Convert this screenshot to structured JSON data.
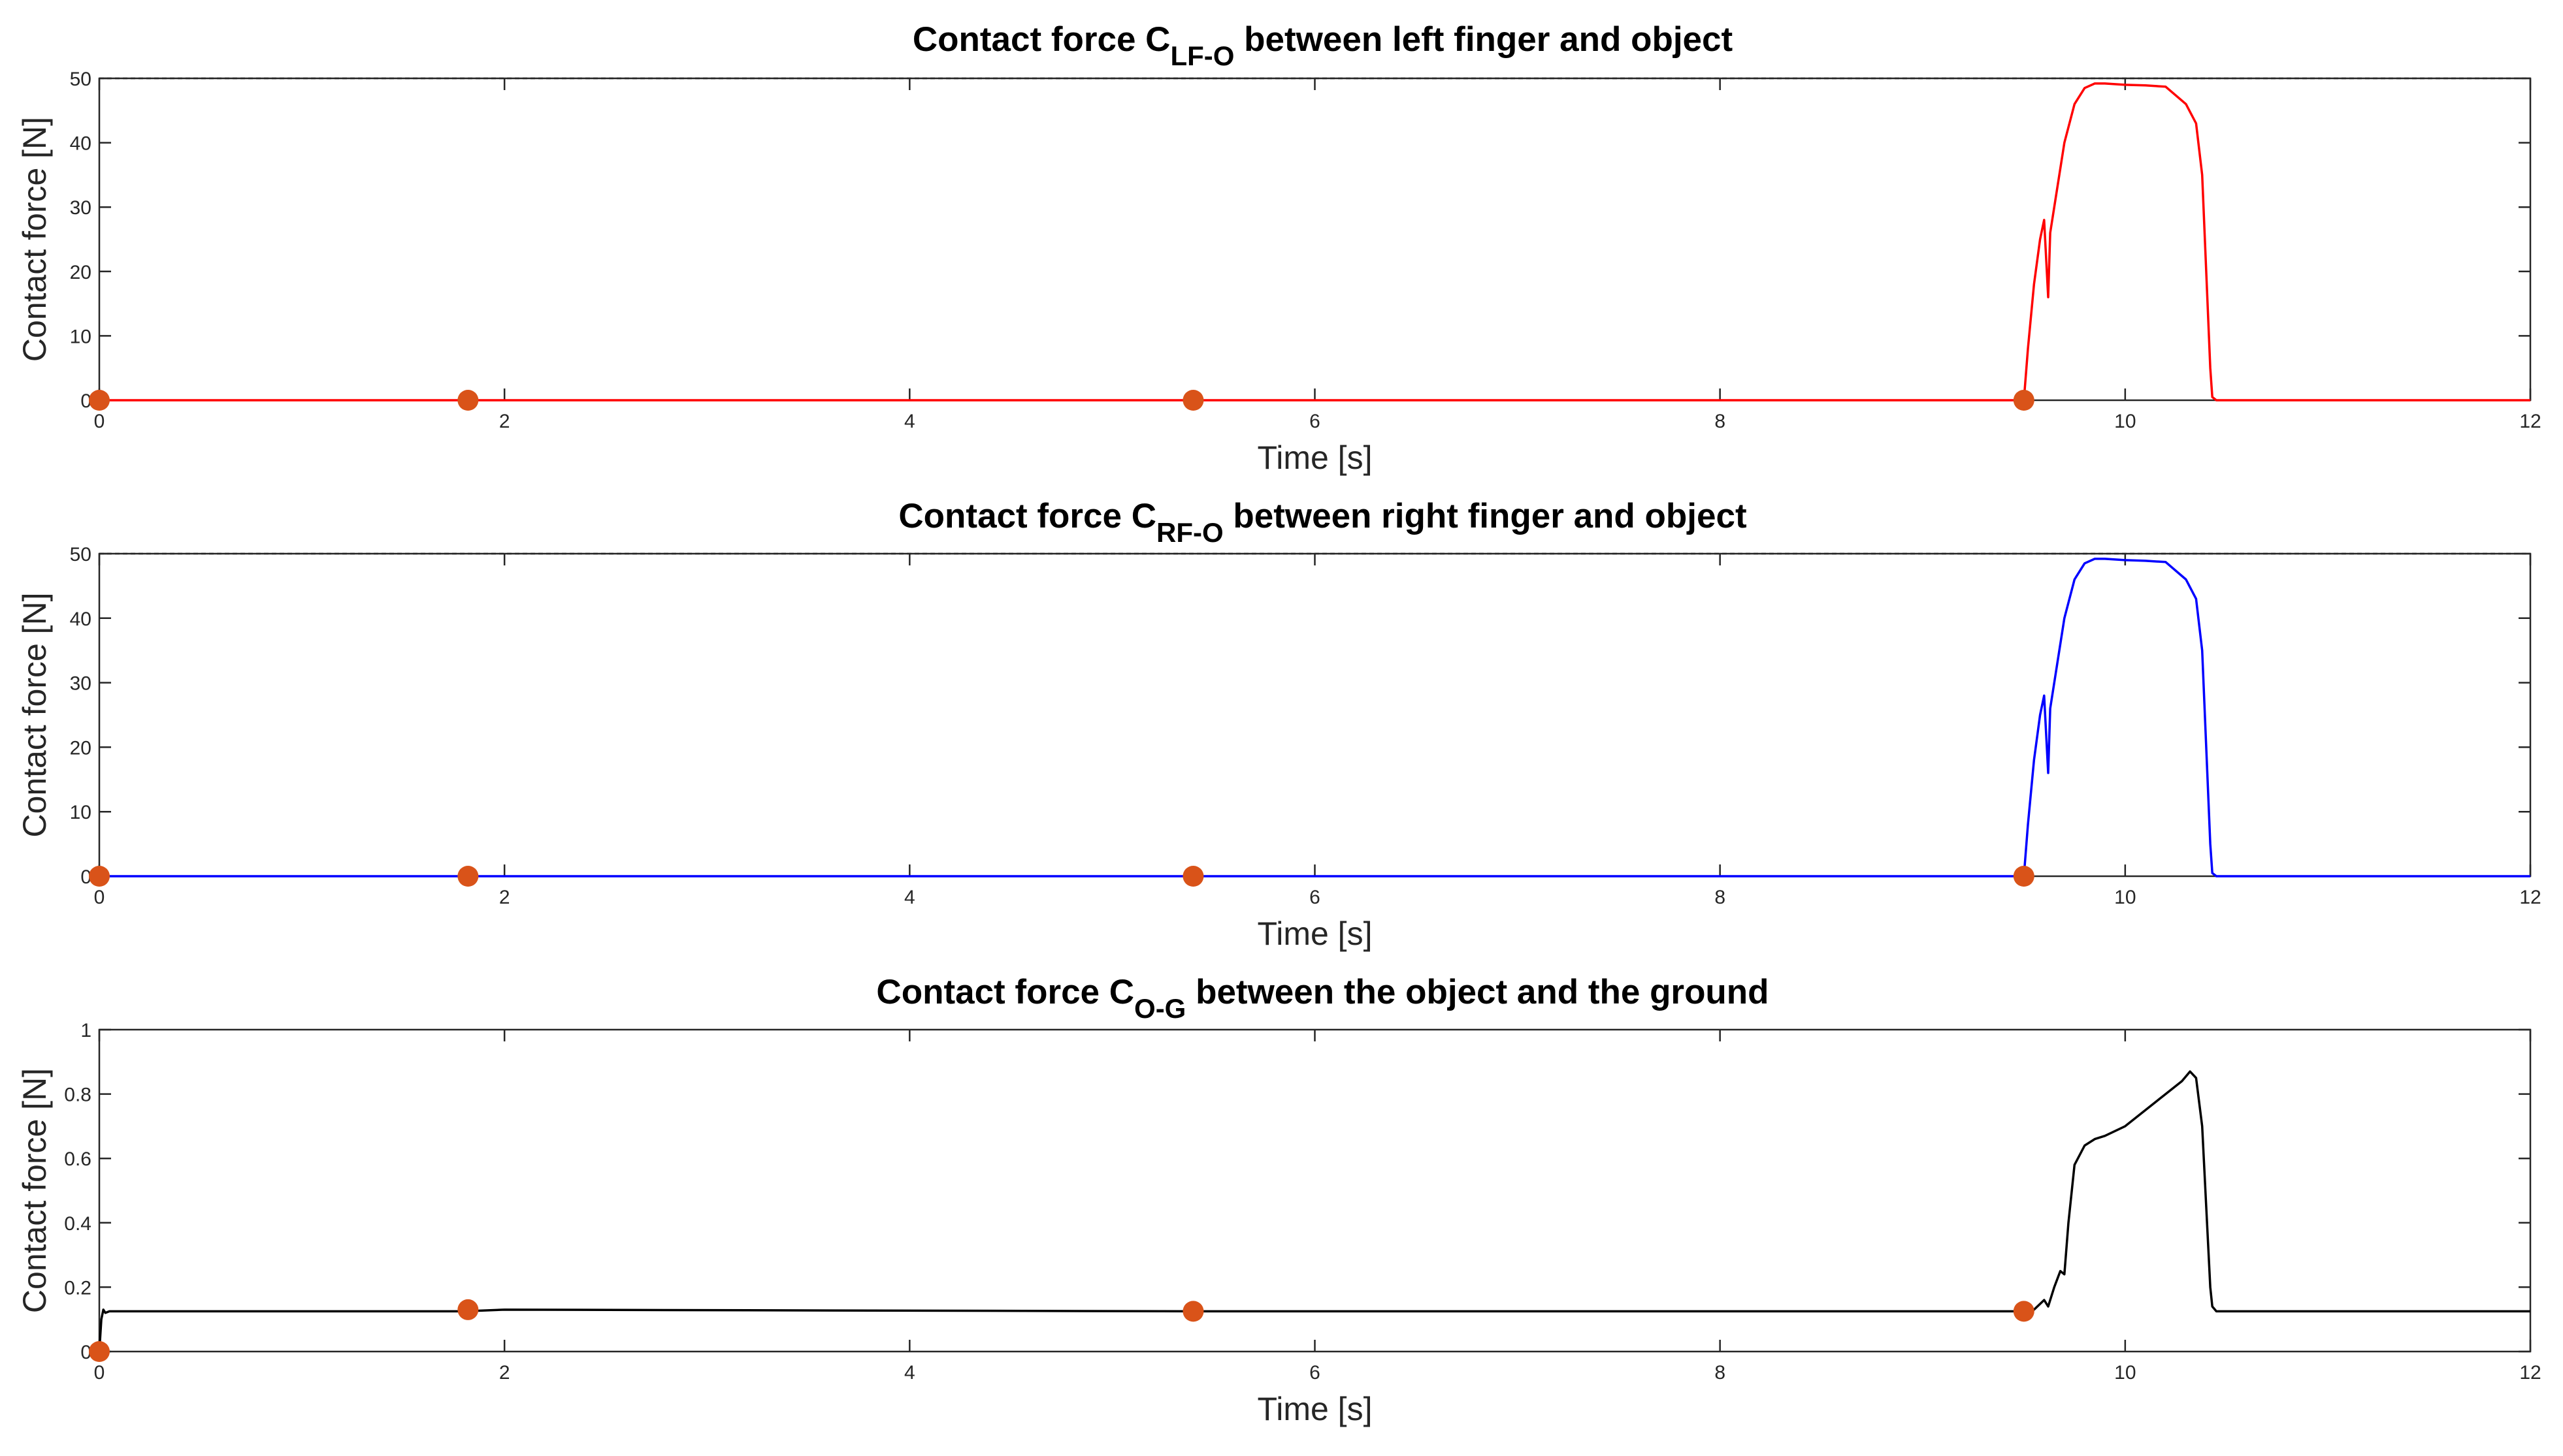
{
  "chart_data": [
    {
      "type": "line",
      "title": {
        "pre": "Contact force C",
        "sub": "LF-O",
        "post": " between left finger and object"
      },
      "xlabel": "Time [s]",
      "ylabel": "Contact force [N]",
      "xlim": [
        0,
        12
      ],
      "ylim": [
        0,
        50
      ],
      "xticks": [
        0,
        2,
        4,
        6,
        8,
        10,
        12
      ],
      "yticks": [
        0,
        10,
        20,
        30,
        40,
        50
      ],
      "grid": false,
      "limit_line": 50,
      "series": [
        {
          "color": "#ff0000",
          "x": [
            0,
            9.5,
            9.52,
            9.55,
            9.58,
            9.6,
            9.61,
            9.62,
            9.63,
            9.65,
            9.7,
            9.75,
            9.8,
            9.85,
            9.9,
            10.0,
            10.1,
            10.2,
            10.3,
            10.35,
            10.38,
            10.4,
            10.42,
            10.43,
            10.45,
            12
          ],
          "y": [
            0,
            0,
            8,
            18,
            25,
            28,
            22,
            16,
            26,
            30,
            40,
            46,
            48.5,
            49.2,
            49.2,
            49.0,
            48.9,
            48.7,
            46,
            43,
            35,
            20,
            5,
            0.5,
            0,
            0
          ]
        }
      ],
      "markers": {
        "color": "#d95319",
        "x": [
          0,
          1.82,
          5.4,
          9.5
        ],
        "y": [
          0,
          0,
          0,
          0
        ]
      }
    },
    {
      "type": "line",
      "title": {
        "pre": "Contact force C",
        "sub": "RF-O",
        "post": " between right finger and object"
      },
      "xlabel": "Time [s]",
      "ylabel": "Contact force [N]",
      "xlim": [
        0,
        12
      ],
      "ylim": [
        0,
        50
      ],
      "xticks": [
        0,
        2,
        4,
        6,
        8,
        10,
        12
      ],
      "yticks": [
        0,
        10,
        20,
        30,
        40,
        50
      ],
      "grid": false,
      "limit_line": 50,
      "series": [
        {
          "color": "#0000ff",
          "x": [
            0,
            9.5,
            9.52,
            9.55,
            9.58,
            9.6,
            9.61,
            9.62,
            9.63,
            9.65,
            9.7,
            9.75,
            9.8,
            9.85,
            9.9,
            10.0,
            10.1,
            10.2,
            10.3,
            10.35,
            10.38,
            10.4,
            10.42,
            10.43,
            10.45,
            12
          ],
          "y": [
            0,
            0,
            8,
            18,
            25,
            28,
            22,
            16,
            26,
            30,
            40,
            46,
            48.5,
            49.2,
            49.2,
            49.0,
            48.9,
            48.7,
            46,
            43,
            35,
            20,
            5,
            0.5,
            0,
            0
          ]
        }
      ],
      "markers": {
        "color": "#d95319",
        "x": [
          0,
          1.82,
          5.4,
          9.5
        ],
        "y": [
          0,
          0,
          0,
          0
        ]
      }
    },
    {
      "type": "line",
      "title": {
        "pre": "Contact force C",
        "sub": "O-G",
        "post": " between the object and the ground"
      },
      "xlabel": "Time [s]",
      "ylabel": "Contact force [N]",
      "xlim": [
        0,
        12
      ],
      "ylim": [
        0,
        1
      ],
      "xticks": [
        0,
        2,
        4,
        6,
        8,
        10,
        12
      ],
      "yticks": [
        0,
        0.2,
        0.4,
        0.6,
        0.8,
        1
      ],
      "grid": false,
      "limit_line": null,
      "series": [
        {
          "color": "#000000",
          "x": [
            0,
            0.01,
            0.02,
            0.03,
            0.05,
            1.8,
            2.0,
            5.4,
            9.5,
            9.55,
            9.6,
            9.62,
            9.65,
            9.68,
            9.7,
            9.72,
            9.75,
            9.8,
            9.85,
            9.9,
            10.0,
            10.1,
            10.2,
            10.28,
            10.32,
            10.35,
            10.38,
            10.4,
            10.42,
            10.43,
            10.45,
            12
          ],
          "y": [
            0,
            0.1,
            0.13,
            0.12,
            0.125,
            0.125,
            0.13,
            0.125,
            0.125,
            0.13,
            0.16,
            0.14,
            0.2,
            0.25,
            0.24,
            0.4,
            0.58,
            0.64,
            0.66,
            0.67,
            0.7,
            0.75,
            0.8,
            0.84,
            0.87,
            0.85,
            0.7,
            0.45,
            0.2,
            0.14,
            0.125,
            0.125
          ]
        }
      ],
      "markers": {
        "color": "#d95319",
        "x": [
          0,
          1.82,
          5.4,
          9.5
        ],
        "y": [
          0,
          0.13,
          0.125,
          0.125
        ]
      }
    }
  ]
}
